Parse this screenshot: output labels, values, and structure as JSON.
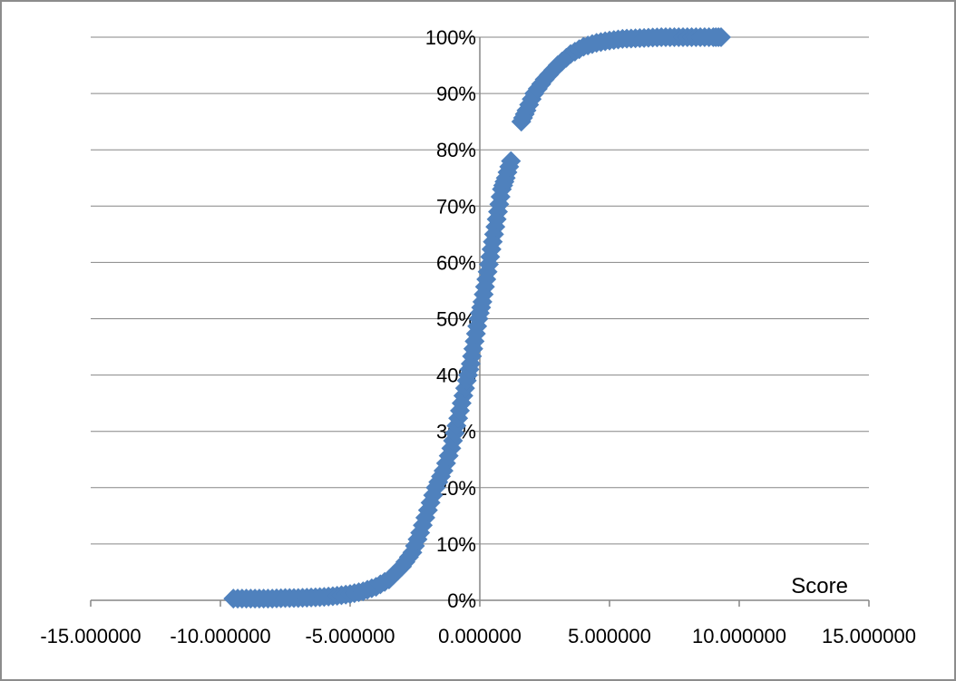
{
  "chart_data": {
    "type": "scatter",
    "title": "",
    "xlabel": "Score",
    "ylabel": "",
    "xlim": [
      -15,
      15
    ],
    "ylim": [
      0,
      1
    ],
    "x_ticks": [
      -15,
      -10,
      -5,
      0,
      5,
      10,
      15
    ],
    "x_tick_labels": [
      "-15.000000",
      "-10.000000",
      "-5.000000",
      "0.000000",
      "5.000000",
      "10.000000",
      "15.000000"
    ],
    "y_ticks": [
      0,
      0.1,
      0.2,
      0.3,
      0.4,
      0.5,
      0.6,
      0.7,
      0.8,
      0.9,
      1.0
    ],
    "y_tick_labels": [
      "0%",
      "10%",
      "20%",
      "30%",
      "40%",
      "50%",
      "60%",
      "70%",
      "80%",
      "90%",
      "100%"
    ],
    "grid": "horizontal",
    "legend": "none",
    "marker": "diamond",
    "marker_color": "#4f81bd",
    "points": [
      [
        -9.5,
        0.003
      ],
      [
        -9.0,
        0.003
      ],
      [
        -8.5,
        0.003
      ],
      [
        -8.0,
        0.003
      ],
      [
        -7.5,
        0.004
      ],
      [
        -7.0,
        0.004
      ],
      [
        -6.5,
        0.005
      ],
      [
        -6.0,
        0.006
      ],
      [
        -5.5,
        0.008
      ],
      [
        -5.0,
        0.011
      ],
      [
        -4.5,
        0.016
      ],
      [
        -4.0,
        0.024
      ],
      [
        -3.5,
        0.037
      ],
      [
        -3.0,
        0.06
      ],
      [
        -2.6,
        0.085
      ],
      [
        -2.3,
        0.12
      ],
      [
        -2.0,
        0.16
      ],
      [
        -1.7,
        0.2
      ],
      [
        -1.4,
        0.23
      ],
      [
        -1.1,
        0.27
      ],
      [
        -0.9,
        0.31
      ],
      [
        -0.7,
        0.35
      ],
      [
        -0.5,
        0.39
      ],
      [
        -0.35,
        0.42
      ],
      [
        -0.2,
        0.46
      ],
      [
        -0.05,
        0.5
      ],
      [
        0.1,
        0.53
      ],
      [
        0.25,
        0.57
      ],
      [
        0.4,
        0.61
      ],
      [
        0.55,
        0.65
      ],
      [
        0.7,
        0.69
      ],
      [
        0.85,
        0.73
      ],
      [
        1.0,
        0.75
      ],
      [
        1.2,
        0.78
      ],
      [
        1.6,
        0.85
      ],
      [
        1.8,
        0.87
      ],
      [
        2.1,
        0.9
      ],
      [
        2.5,
        0.925
      ],
      [
        3.0,
        0.95
      ],
      [
        3.5,
        0.97
      ],
      [
        4.0,
        0.983
      ],
      [
        4.5,
        0.99
      ],
      [
        5.0,
        0.994
      ],
      [
        5.5,
        0.997
      ],
      [
        6.0,
        0.998
      ],
      [
        6.5,
        0.999
      ],
      [
        7.0,
        1.0
      ],
      [
        7.5,
        1.0
      ],
      [
        8.0,
        1.0
      ],
      [
        8.5,
        1.0
      ],
      [
        9.0,
        1.0
      ],
      [
        9.3,
        1.0
      ]
    ]
  }
}
